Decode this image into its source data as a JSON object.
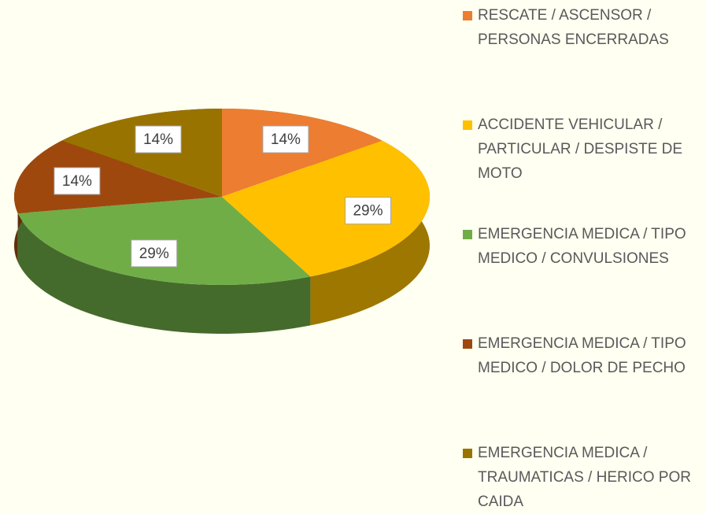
{
  "chart_data": {
    "type": "pie3d",
    "series": [
      {
        "name": "RESCATE / ASCENSOR / PERSONAS ENCERRADAS",
        "color": "#ed7d31",
        "values": [
          14
        ],
        "value_labels": [
          "14%"
        ]
      },
      {
        "name": "ACCIDENTE VEHICULAR / PARTICULAR / DESPISTE DE MOTO",
        "color": "#ffc000",
        "values": [
          29
        ],
        "value_labels": [
          "29%"
        ]
      },
      {
        "name": "EMERGENCIA MEDICA / TIPO MEDICO / CONVULSIONES",
        "color": "#70ad47",
        "values": [
          29
        ],
        "value_labels": [
          "29%"
        ]
      },
      {
        "name": "EMERGENCIA MEDICA / TIPO MEDICO / DOLOR DE PECHO",
        "color": "#9e480e",
        "values": [
          14
        ],
        "value_labels": [
          "14%"
        ]
      },
      {
        "name": "EMERGENCIA MEDICA / TRAUMATICAS / HERICO POR CAIDA",
        "color": "#997300",
        "values": [
          14
        ],
        "value_labels": [
          "14%"
        ]
      }
    ],
    "legend": "right"
  }
}
